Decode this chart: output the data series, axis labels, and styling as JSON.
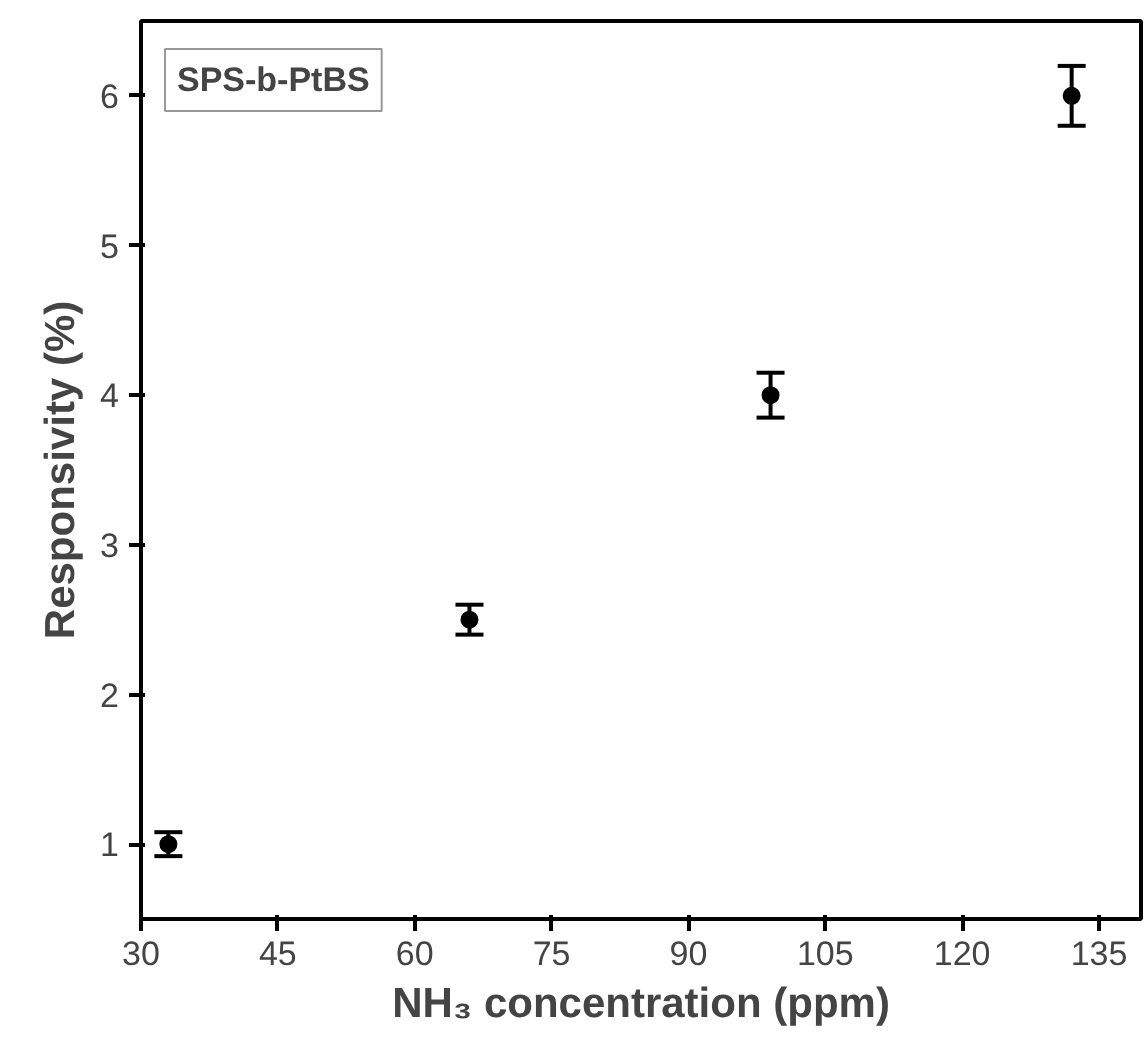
{
  "chart_data": {
    "type": "scatter",
    "xlabel": "NH₃ concentration (ppm)",
    "ylabel": "Responsivity (%)",
    "x": [
      33,
      66,
      99,
      132
    ],
    "series": [
      {
        "color": "#000000",
        "values": [
          1.0,
          2.5,
          4.0,
          6.0
        ],
        "errors": [
          0.08,
          0.1,
          0.15,
          0.2
        ]
      }
    ],
    "marker": "circle",
    "xlim": [
      30,
      139.6
    ],
    "ylim": [
      0.5,
      6.5
    ],
    "xticks": [
      30,
      45,
      60,
      75,
      90,
      105,
      120,
      135
    ],
    "yticks": [
      1,
      2,
      3,
      4,
      5,
      6
    ],
    "annotations": [
      "SPS-b-PtBS"
    ],
    "grid": false
  }
}
